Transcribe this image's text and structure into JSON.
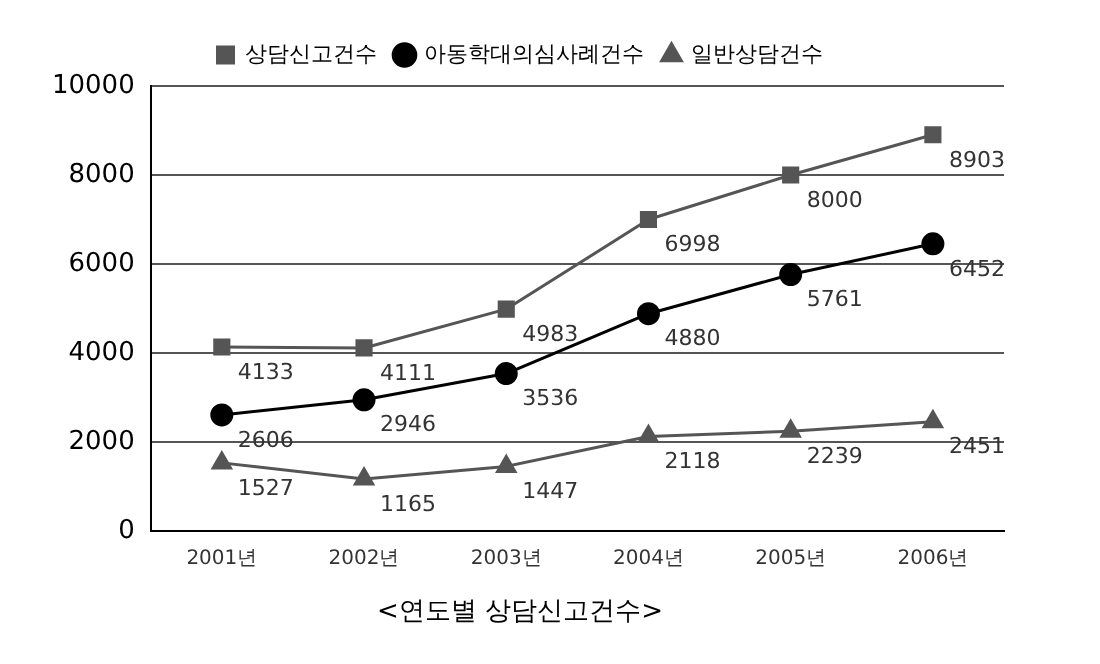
{
  "chart_data": {
    "type": "line",
    "title": "<연도별 상담신고건수>",
    "categories": [
      "2001년",
      "2002년",
      "2003년",
      "2004년",
      "2005년",
      "2006년"
    ],
    "series": [
      {
        "name": "상담신고건수",
        "color": "#555555",
        "marker": "square",
        "values": [
          4133,
          4111,
          4983,
          6998,
          8000,
          8903
        ]
      },
      {
        "name": "아동학대의심사례건수",
        "color": "#000000",
        "marker": "circle",
        "values": [
          2606,
          2946,
          3536,
          4880,
          5761,
          6452
        ]
      },
      {
        "name": "일반상담건수",
        "color": "#555555",
        "marker": "triangle",
        "values": [
          1527,
          1165,
          1447,
          2118,
          2239,
          2451
        ]
      }
    ],
    "ylim": [
      0,
      10000
    ],
    "yticks": [
      0,
      2000,
      4000,
      6000,
      8000,
      10000
    ],
    "grid": "y",
    "legend": "top",
    "data_labels": true
  }
}
